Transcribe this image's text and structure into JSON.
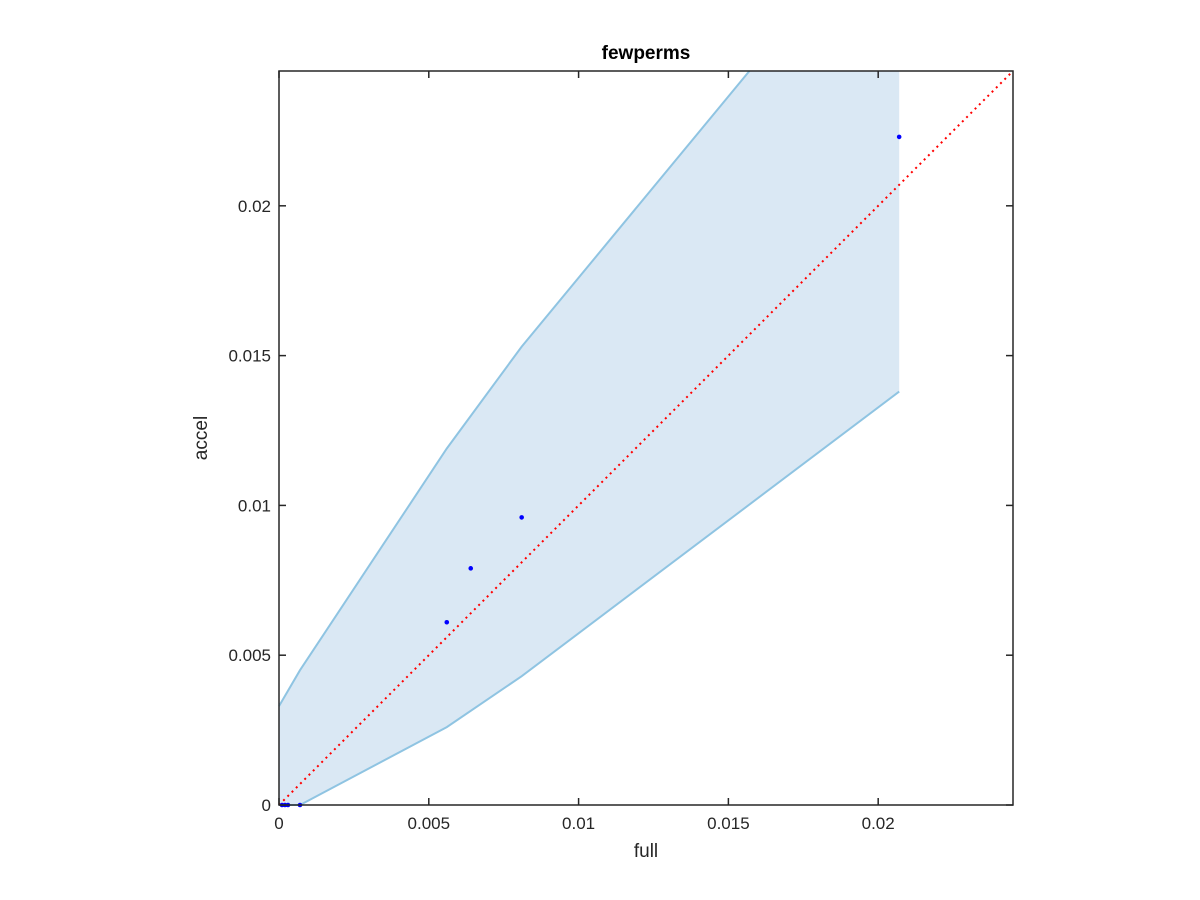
{
  "chart_data": {
    "type": "scatter",
    "title": "fewperms",
    "xlabel": "full",
    "ylabel": "accel",
    "xlim": [
      0,
      0.0245
    ],
    "ylim": [
      0,
      0.0245
    ],
    "xticks": [
      0,
      0.005,
      0.01,
      0.015,
      0.02
    ],
    "xtick_labels": [
      "0",
      "0.005",
      "0.01",
      "0.015",
      "0.02"
    ],
    "yticks": [
      0,
      0.005,
      0.01,
      0.015,
      0.02
    ],
    "ytick_labels": [
      "0",
      "0.005",
      "0.01",
      "0.015",
      "0.02"
    ],
    "grid": false,
    "box": true,
    "band": {
      "upper": [
        [
          0,
          0.0033
        ],
        [
          0.0007,
          0.0045
        ],
        [
          0.0056,
          0.0119
        ],
        [
          0.0081,
          0.0153
        ],
        [
          0.0157,
          0.0245
        ],
        [
          0.0207,
          0.0245
        ]
      ],
      "lower": [
        [
          0,
          0
        ],
        [
          0.0007,
          0
        ],
        [
          0.0056,
          0.0026
        ],
        [
          0.0081,
          0.0043
        ],
        [
          0.0207,
          0.0138
        ]
      ],
      "fill_color": "#dae8f4",
      "line_color": "#8fc4e2"
    },
    "points": {
      "x": [
        0.0001,
        0.0002,
        0.0003,
        0.0007,
        0.0056,
        0.0064,
        0.0081,
        0.0207
      ],
      "y": [
        0,
        0,
        0,
        0,
        0.0061,
        0.0079,
        0.0096,
        0.0223
      ],
      "color": "#0000ff"
    },
    "reference_line": {
      "from": [
        0,
        0
      ],
      "to": [
        0.0245,
        0.0245
      ],
      "color": "#ff0000",
      "style": "dotted"
    }
  }
}
